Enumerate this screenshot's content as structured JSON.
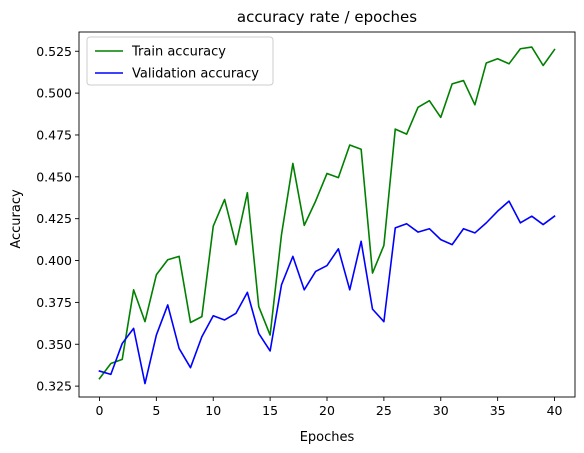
{
  "chart_data": {
    "type": "line",
    "title": "accuracy rate / epoches",
    "xlabel": "Epoches",
    "ylabel": "Accuracy",
    "xlim": [
      -1.8,
      41.8
    ],
    "ylim": [
      0.3185,
      0.5365
    ],
    "x_ticks": [
      0,
      5,
      10,
      15,
      20,
      25,
      30,
      35,
      40
    ],
    "y_ticks": [
      0.325,
      0.35,
      0.375,
      0.4,
      0.425,
      0.45,
      0.475,
      0.5,
      0.525
    ],
    "y_tick_labels": [
      "0.325",
      "0.350",
      "0.375",
      "0.400",
      "0.425",
      "0.450",
      "0.475",
      "0.500",
      "0.525"
    ],
    "grid": false,
    "legend_position": "top-left",
    "x": [
      0,
      1,
      2,
      3,
      4,
      5,
      6,
      7,
      8,
      9,
      10,
      11,
      12,
      13,
      14,
      15,
      16,
      17,
      18,
      19,
      20,
      21,
      22,
      23,
      24,
      25,
      26,
      27,
      28,
      29,
      30,
      31,
      32,
      33,
      34,
      35,
      36,
      37,
      38,
      39,
      40
    ],
    "series": [
      {
        "name": "Train accuracy",
        "color": "#008000",
        "values": [
          0.3295,
          0.3385,
          0.341,
          0.3825,
          0.3635,
          0.3915,
          0.4005,
          0.4025,
          0.363,
          0.3665,
          0.4205,
          0.4365,
          0.4095,
          0.4405,
          0.3725,
          0.3555,
          0.4155,
          0.458,
          0.421,
          0.4355,
          0.452,
          0.4495,
          0.469,
          0.4665,
          0.3925,
          0.409,
          0.4785,
          0.4755,
          0.4915,
          0.4955,
          0.4855,
          0.5055,
          0.5075,
          0.493,
          0.518,
          0.5205,
          0.5175,
          0.5265,
          0.5275,
          0.5165,
          0.526
        ]
      },
      {
        "name": "Validation accuracy",
        "color": "#0000ff",
        "values": [
          0.334,
          0.332,
          0.3505,
          0.3595,
          0.3265,
          0.3555,
          0.3735,
          0.3475,
          0.336,
          0.3545,
          0.367,
          0.3645,
          0.3685,
          0.381,
          0.3565,
          0.346,
          0.3855,
          0.4025,
          0.3825,
          0.3935,
          0.397,
          0.407,
          0.3825,
          0.4115,
          0.371,
          0.3635,
          0.4195,
          0.422,
          0.417,
          0.419,
          0.4125,
          0.4095,
          0.419,
          0.4165,
          0.4225,
          0.4295,
          0.4355,
          0.4225,
          0.4265,
          0.4215,
          0.4265
        ]
      }
    ]
  }
}
